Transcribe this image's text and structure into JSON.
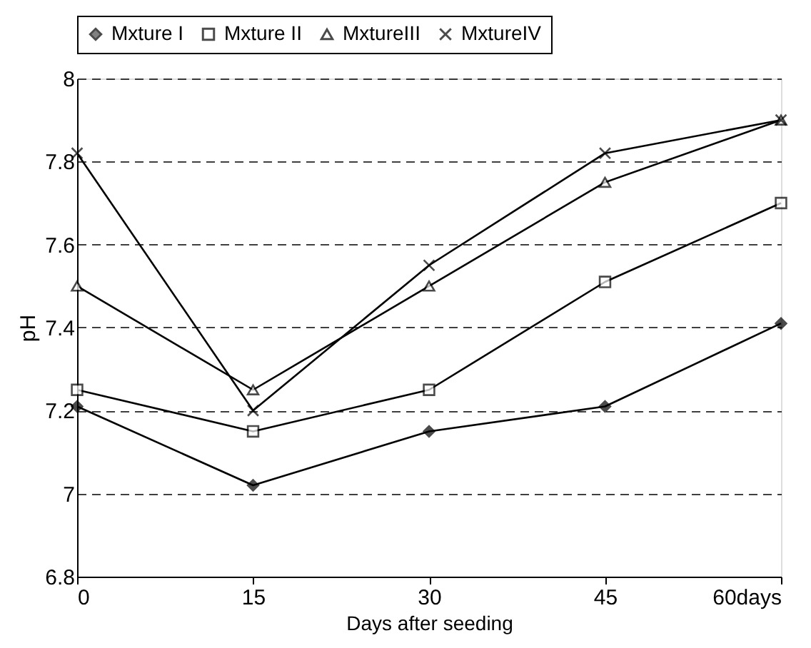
{
  "chart_data": {
    "type": "line",
    "xlabel": "Days after seeding",
    "ylabel": "pH",
    "categories": [
      "0",
      "15",
      "30",
      "45",
      "60days"
    ],
    "series": [
      {
        "name": "Mxture I",
        "color": "#000000",
        "marker": "diamond",
        "values": [
          7.21,
          7.02,
          7.15,
          7.21,
          7.41
        ]
      },
      {
        "name": "Mxture II",
        "color": "#000000",
        "marker": "square",
        "values": [
          7.25,
          7.15,
          7.25,
          7.51,
          7.7
        ]
      },
      {
        "name": "MxtureIII",
        "color": "#000000",
        "marker": "triangle",
        "values": [
          7.5,
          7.25,
          7.5,
          7.75,
          7.9
        ]
      },
      {
        "name": "MxtureIV",
        "color": "#000000",
        "marker": "cross",
        "values": [
          7.82,
          7.2,
          7.55,
          7.82,
          7.9
        ]
      }
    ],
    "ylim": [
      6.8,
      8
    ],
    "yticks": [
      6.8,
      7,
      7.2,
      7.4,
      7.6,
      7.8,
      8
    ],
    "grid": "y",
    "legend": "top",
    "line_style": "solid"
  }
}
